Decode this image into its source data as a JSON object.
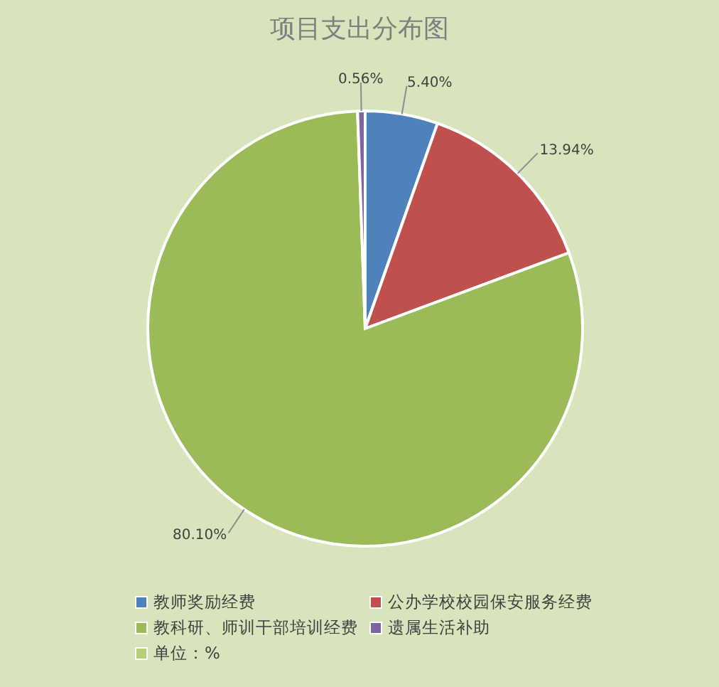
{
  "chart_data": {
    "type": "pie",
    "title": "项目支出分布图",
    "categories": [
      "教师奖励经费",
      "公办学校校园保安服务经费",
      "教科研、师训干部培训经费",
      "遗属生活补助"
    ],
    "values": [
      5.4,
      13.94,
      80.1,
      0.56
    ],
    "colors": [
      "#4f81bd",
      "#c0504d",
      "#9bbb59",
      "#8064a2"
    ],
    "value_labels": [
      "5.40%",
      "13.94%",
      "80.10%",
      "0.56%"
    ],
    "legend": "bottom",
    "annotations": [
      "单位：%"
    ]
  }
}
